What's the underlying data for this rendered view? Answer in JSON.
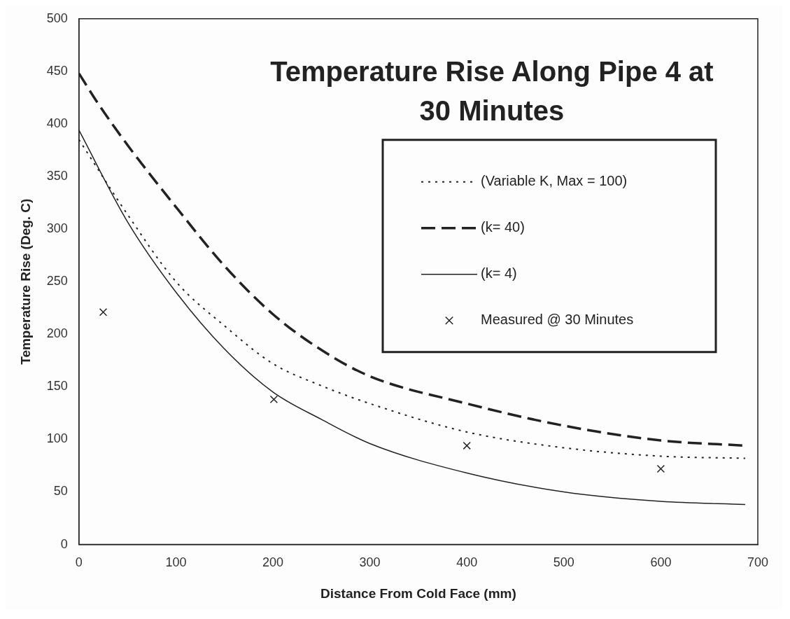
{
  "chart_data": {
    "type": "line",
    "title": [
      "Temperature Rise Along Pipe 4 at",
      "30 Minutes"
    ],
    "xlabel": "Distance From Cold Face (mm)",
    "ylabel": "Temperature Rise (Deg. C)",
    "xlim": [
      0,
      700
    ],
    "xticks": [
      0,
      100,
      200,
      300,
      400,
      500,
      600,
      700
    ],
    "ylim": [
      0,
      500
    ],
    "yticks": [
      0,
      50,
      100,
      150,
      200,
      250,
      300,
      350,
      400,
      450,
      500
    ],
    "grid": false,
    "legend": "top right",
    "series": [
      {
        "name": "(Variable K, Max = 100)",
        "color": "#222222",
        "line_style": "dotted",
        "marker": "none",
        "x": [
          0,
          50,
          100,
          150,
          200,
          250,
          300,
          400,
          500,
          600,
          687
        ],
        "values": [
          385,
          314,
          250,
          208,
          172,
          151,
          134,
          107,
          92,
          84,
          82
        ]
      },
      {
        "name": "(k= 40)",
        "color": "#222222",
        "line_style": "dashed",
        "marker": "none",
        "x": [
          0,
          20,
          50,
          100,
          150,
          200,
          250,
          300,
          400,
          500,
          600,
          687
        ],
        "values": [
          448,
          419,
          380,
          321,
          265,
          219,
          185,
          160,
          134,
          113,
          99,
          94
        ]
      },
      {
        "name": "(k= 4)",
        "color": "#222222",
        "line_style": "solid",
        "marker": "none",
        "x": [
          0,
          50,
          100,
          150,
          200,
          250,
          300,
          400,
          500,
          600,
          687
        ],
        "values": [
          394,
          307,
          240,
          186,
          145,
          119,
          96,
          68,
          50,
          41,
          38
        ]
      },
      {
        "name": "Measured @ 30 Minutes",
        "type": "scatter",
        "color": "#222222",
        "marker": "cross",
        "x": [
          25,
          201,
          400,
          600
        ],
        "values": [
          221,
          138,
          94,
          72
        ]
      }
    ]
  }
}
